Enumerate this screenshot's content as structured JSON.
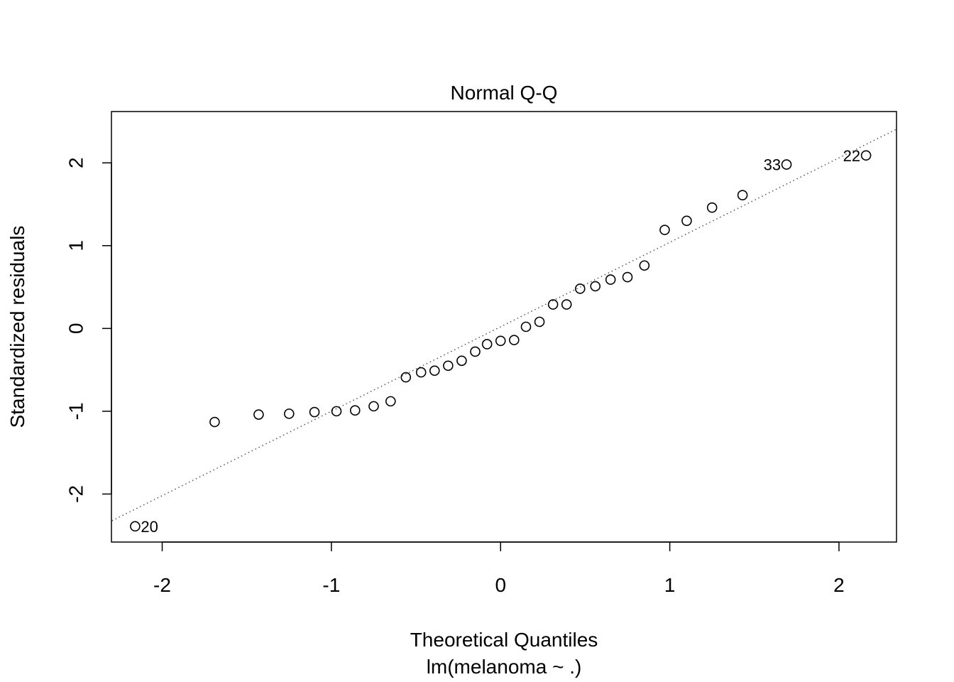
{
  "chart_data": {
    "type": "scatter",
    "title": "Normal Q-Q",
    "xlabel": "Theoretical Quantiles",
    "subtitle": "lm(melanoma ~ .)",
    "ylabel": "Standardized residuals",
    "xlim": [
      -2.3,
      2.34
    ],
    "ylim": [
      -2.58,
      2.62
    ],
    "x_ticks": [
      -2,
      -1,
      0,
      1,
      2
    ],
    "x_tick_labels": [
      "-2",
      "-1",
      "0",
      "1",
      "2"
    ],
    "y_ticks": [
      -2,
      -1,
      0,
      1,
      2
    ],
    "y_tick_labels": [
      "-2",
      "-1",
      "0",
      "1",
      "2"
    ],
    "grid": false,
    "reference_line": {
      "intercept": 0.02,
      "slope": 1.02,
      "style": "dotted",
      "color": "#555555"
    },
    "points": [
      {
        "x": -2.16,
        "y": -2.39
      },
      {
        "x": -1.69,
        "y": -1.13
      },
      {
        "x": -1.43,
        "y": -1.04
      },
      {
        "x": -1.25,
        "y": -1.03
      },
      {
        "x": -1.1,
        "y": -1.01
      },
      {
        "x": -0.97,
        "y": -1.0
      },
      {
        "x": -0.86,
        "y": -0.99
      },
      {
        "x": -0.75,
        "y": -0.94
      },
      {
        "x": -0.65,
        "y": -0.88
      },
      {
        "x": -0.56,
        "y": -0.59
      },
      {
        "x": -0.47,
        "y": -0.53
      },
      {
        "x": -0.39,
        "y": -0.51
      },
      {
        "x": -0.31,
        "y": -0.45
      },
      {
        "x": -0.23,
        "y": -0.39
      },
      {
        "x": -0.15,
        "y": -0.28
      },
      {
        "x": -0.08,
        "y": -0.19
      },
      {
        "x": 0.0,
        "y": -0.15
      },
      {
        "x": 0.08,
        "y": -0.14
      },
      {
        "x": 0.15,
        "y": 0.02
      },
      {
        "x": 0.23,
        "y": 0.08
      },
      {
        "x": 0.31,
        "y": 0.29
      },
      {
        "x": 0.39,
        "y": 0.29
      },
      {
        "x": 0.47,
        "y": 0.48
      },
      {
        "x": 0.56,
        "y": 0.51
      },
      {
        "x": 0.65,
        "y": 0.59
      },
      {
        "x": 0.75,
        "y": 0.62
      },
      {
        "x": 0.85,
        "y": 0.76
      },
      {
        "x": 0.97,
        "y": 1.19
      },
      {
        "x": 1.1,
        "y": 1.3
      },
      {
        "x": 1.25,
        "y": 1.46
      },
      {
        "x": 1.43,
        "y": 1.61
      },
      {
        "x": 1.69,
        "y": 1.98
      },
      {
        "x": 2.16,
        "y": 2.09
      }
    ],
    "point_labels": [
      {
        "text": "20",
        "x": -2.16,
        "y": -2.39,
        "pos": "right"
      },
      {
        "text": "33",
        "x": 1.69,
        "y": 1.98,
        "pos": "left"
      },
      {
        "text": "22",
        "x": 2.16,
        "y": 2.09,
        "pos": "left"
      }
    ]
  }
}
